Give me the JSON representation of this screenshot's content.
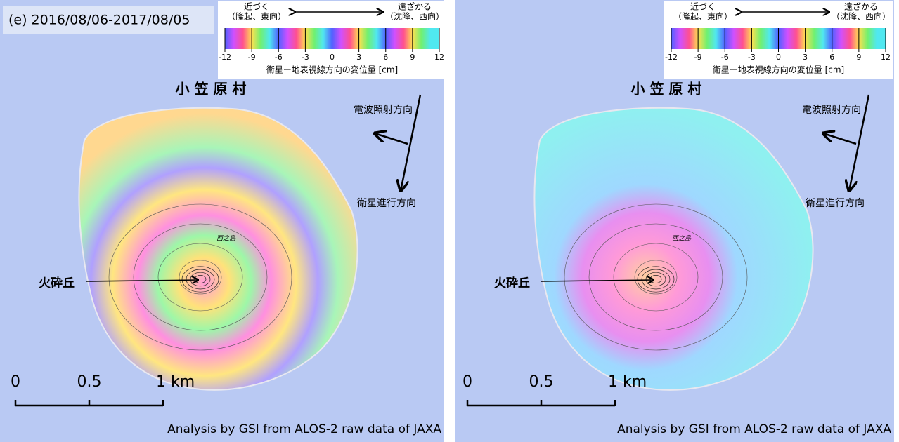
{
  "panels": [
    {
      "title": "(e) 2016/08/06-2017/08/05",
      "colorbar": {
        "near": "近づく",
        "near_note": "（隆起、東向）",
        "far": "遠ざかる",
        "far_note": "（沈降、西向）",
        "ticks": [
          -12,
          -9,
          -6,
          -3,
          0,
          3,
          6,
          9,
          12
        ],
        "caption": "衛星ー地表視線方向の変位量 [cm]"
      },
      "place": "小 笠 原 村",
      "island": "西之島",
      "beam": "電波照射方向",
      "track": "衛星進行方向",
      "cone": "火砕丘",
      "scale": [
        "0",
        "0.5",
        "1 km"
      ],
      "credit": "Analysis by GSI from ALOS-2 raw data of JAXA"
    },
    {
      "colorbar": {
        "near": "近づく",
        "near_note": "（隆起、東向）",
        "far": "遠ざかる",
        "far_note": "（沈降、西向）",
        "ticks": [
          -12,
          -9,
          -6,
          -3,
          0,
          3,
          6,
          9,
          12
        ],
        "caption": "衛星ー地表視線方向の変位量 [cm]"
      },
      "place": "小 笠 原 村",
      "island": "西之島",
      "beam": "電波照射方向",
      "track": "衛星進行方向",
      "cone": "火砕丘",
      "scale": [
        "0",
        "0.5",
        "1 km"
      ],
      "credit": "Analysis by GSI from ALOS-2 raw data of JAXA"
    }
  ]
}
